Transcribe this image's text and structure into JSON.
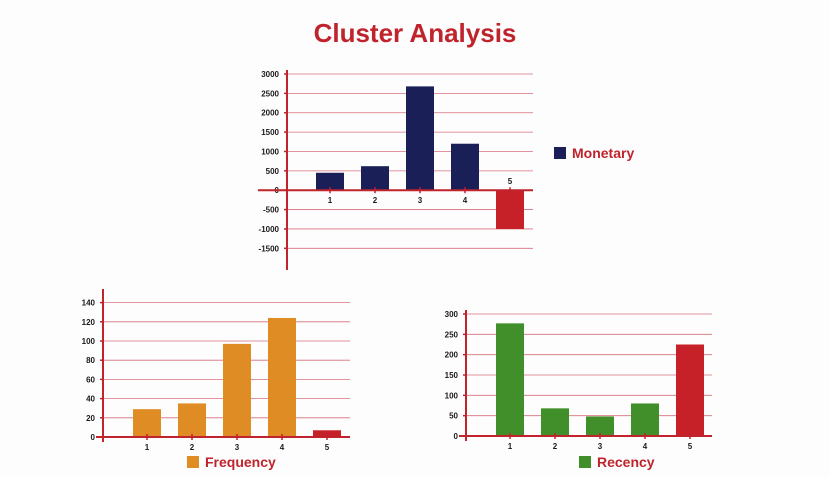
{
  "title": "Cluster Analysis",
  "colors": {
    "accent": "#c0232c",
    "grid": "#d6707a",
    "axis": "#c0232c",
    "tick_text": "#1a1a1a"
  },
  "chart_data": [
    {
      "id": "monetary",
      "type": "bar",
      "title": "",
      "xlabel": "",
      "ylabel": "",
      "categories": [
        "1",
        "2",
        "3",
        "4",
        "5"
      ],
      "series": [
        {
          "name": "Monetary",
          "values": [
            450,
            620,
            2680,
            1200,
            -1000
          ],
          "colors": [
            "#1b1f57",
            "#1b1f57",
            "#1b1f57",
            "#1b1f57",
            "#c62128"
          ]
        }
      ],
      "ylim": [
        -1750,
        3000
      ],
      "yticks": [
        3000,
        2500,
        2000,
        1500,
        1000,
        500,
        0,
        -500,
        -1000,
        -1500
      ],
      "grid": true,
      "legend": {
        "label": "Monetary",
        "color": "#1b1f57",
        "placement": "right"
      }
    },
    {
      "id": "frequency",
      "type": "bar",
      "title": "",
      "xlabel": "",
      "ylabel": "",
      "categories": [
        "1",
        "2",
        "3",
        "4",
        "5"
      ],
      "series": [
        {
          "name": "Frequency",
          "values": [
            29,
            35,
            97,
            124,
            7
          ],
          "colors": [
            "#df8c25",
            "#df8c25",
            "#df8c25",
            "#df8c25",
            "#c62128"
          ]
        }
      ],
      "ylim": [
        0,
        150
      ],
      "yticks": [
        140,
        120,
        100,
        80,
        60,
        40,
        20,
        0
      ],
      "grid": true,
      "legend": {
        "label": "Frequency",
        "color": "#df8c25",
        "placement": "bottom"
      }
    },
    {
      "id": "recency",
      "type": "bar",
      "title": "",
      "xlabel": "",
      "ylabel": "",
      "categories": [
        "1",
        "2",
        "3",
        "4",
        "5"
      ],
      "series": [
        {
          "name": "Recency",
          "values": [
            277,
            68,
            48,
            80,
            225
          ],
          "colors": [
            "#418f2a",
            "#418f2a",
            "#418f2a",
            "#418f2a",
            "#c62128"
          ]
        }
      ],
      "ylim": [
        0,
        300
      ],
      "yticks": [
        300,
        250,
        200,
        150,
        100,
        50,
        0
      ],
      "grid": true,
      "legend": {
        "label": "Recency",
        "color": "#418f2a",
        "placement": "bottom"
      }
    }
  ]
}
